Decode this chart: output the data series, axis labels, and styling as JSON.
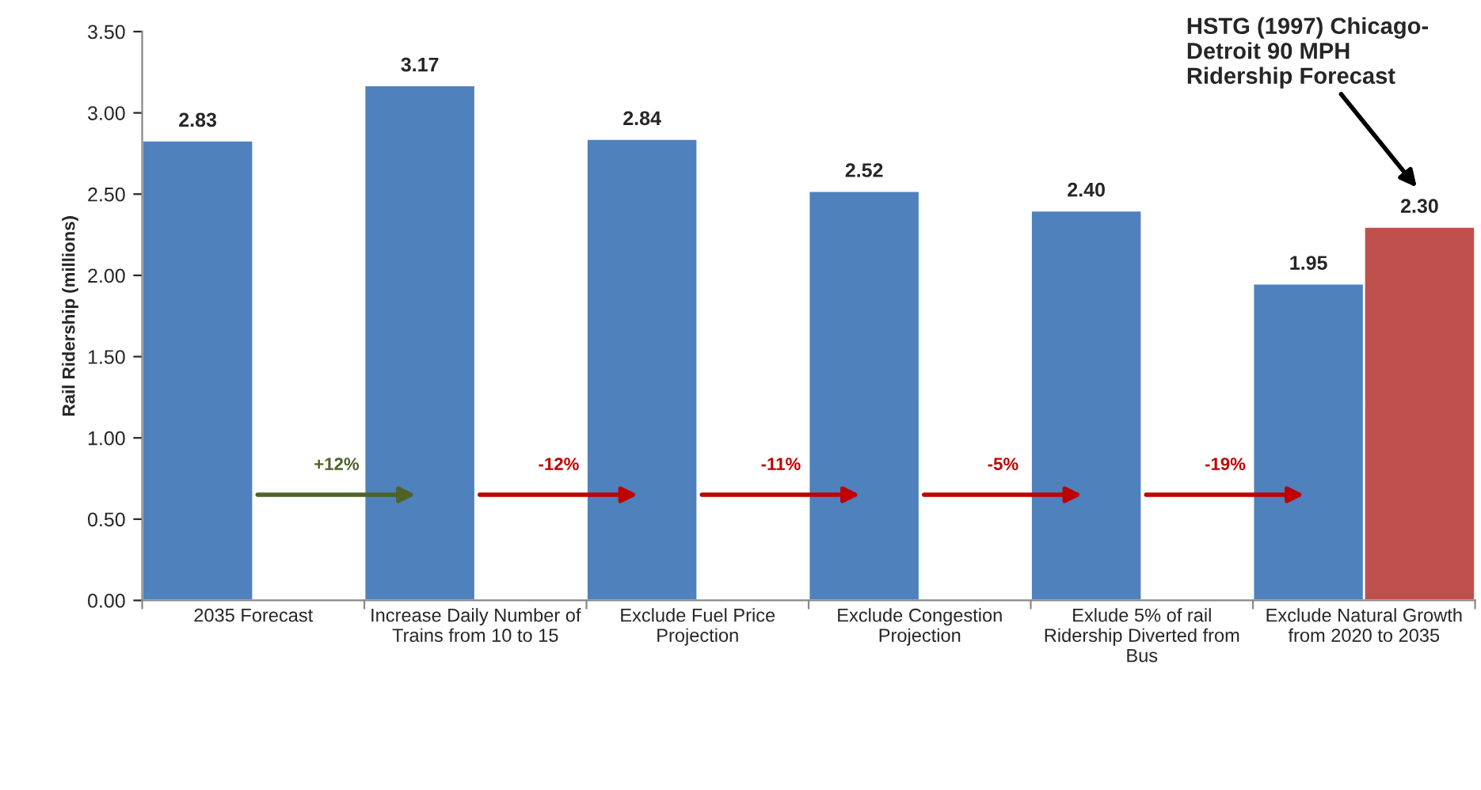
{
  "chart_data": {
    "type": "bar",
    "ylabel": "Rail Ridership (millions)",
    "categories": [
      "2035 Forecast",
      "Increase Daily Number of\nTrains from 10 to 15",
      "Exclude Fuel Price\nProjection",
      "Exclude Congestion\nProjection",
      "Exlude 5% of rail\nRidership Diverted from\nBus",
      "Exclude Natural Growth\nfrom 2020 to 2035"
    ],
    "series": [
      {
        "color": "#4f81bd",
        "values": [
          2.83,
          3.17,
          2.84,
          2.52,
          2.4,
          1.95
        ],
        "value_labels": [
          "2.83",
          "3.17",
          "2.84",
          "2.52",
          "2.40",
          "1.95"
        ]
      },
      {
        "color": "#c0504d",
        "values": [
          null,
          null,
          null,
          null,
          null,
          2.3
        ],
        "value_labels": [
          null,
          null,
          null,
          null,
          null,
          "2.30"
        ]
      }
    ],
    "ylim": [
      0,
      3.5
    ],
    "yticks": [
      {
        "value": 0,
        "label": "0.00"
      },
      {
        "value": 0.5,
        "label": "0.50"
      },
      {
        "value": 1,
        "label": "1.00"
      },
      {
        "value": 1.5,
        "label": "1.50"
      },
      {
        "value": 2,
        "label": "2.00"
      },
      {
        "value": 2.5,
        "label": "2.50"
      },
      {
        "value": 3,
        "label": "3.00"
      },
      {
        "value": 3.5,
        "label": "3.50"
      }
    ],
    "grid": false,
    "legend": false,
    "annotations": [
      "+12%",
      "-12%",
      "-11%",
      "-5%",
      "-19%",
      "HSTG (1997) Chicago-\nDetroit 90 MPH\nRidership Forecast"
    ]
  }
}
